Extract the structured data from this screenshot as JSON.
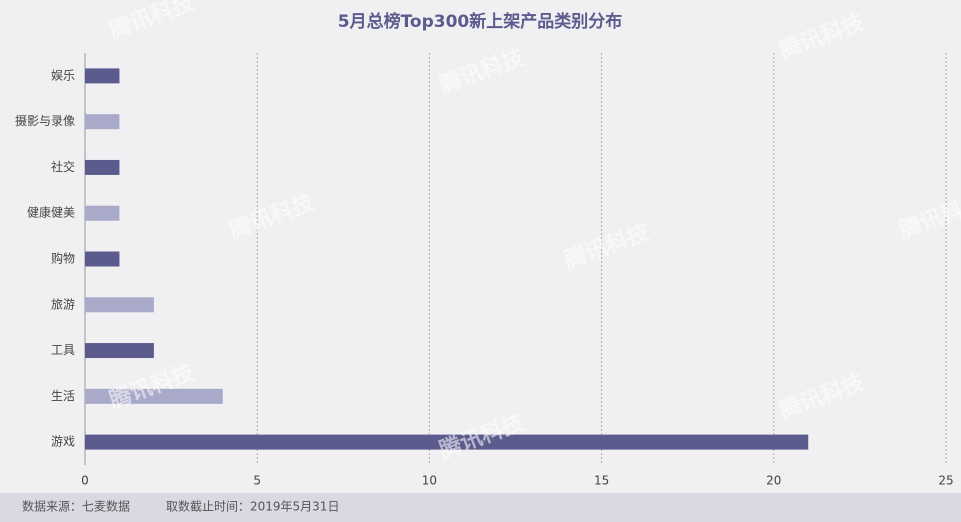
{
  "chart_data": {
    "type": "barh",
    "title": "5月总榜Top300新上架产品类别分布",
    "categories": [
      "娱乐",
      "摄影与录像",
      "社交",
      "健康健美",
      "购物",
      "旅游",
      "工具",
      "生活",
      "游戏"
    ],
    "values": [
      1,
      1,
      1,
      1,
      1,
      2,
      2,
      4,
      21
    ],
    "colors": [
      "#5b5b8e",
      "#a9a9c9",
      "#5b5b8e",
      "#a9a9c9",
      "#5b5b8e",
      "#a9a9c9",
      "#5b5b8e",
      "#a9a9c9",
      "#5b5b8e"
    ],
    "xlim": [
      0,
      25
    ],
    "xticks": [
      0,
      5,
      10,
      15,
      20,
      25
    ],
    "grid": true,
    "watermark": "腾讯科技"
  },
  "footer": {
    "source": "数据来源：七麦数据",
    "cutoff": "取数截止时间：2019年5月31日"
  }
}
